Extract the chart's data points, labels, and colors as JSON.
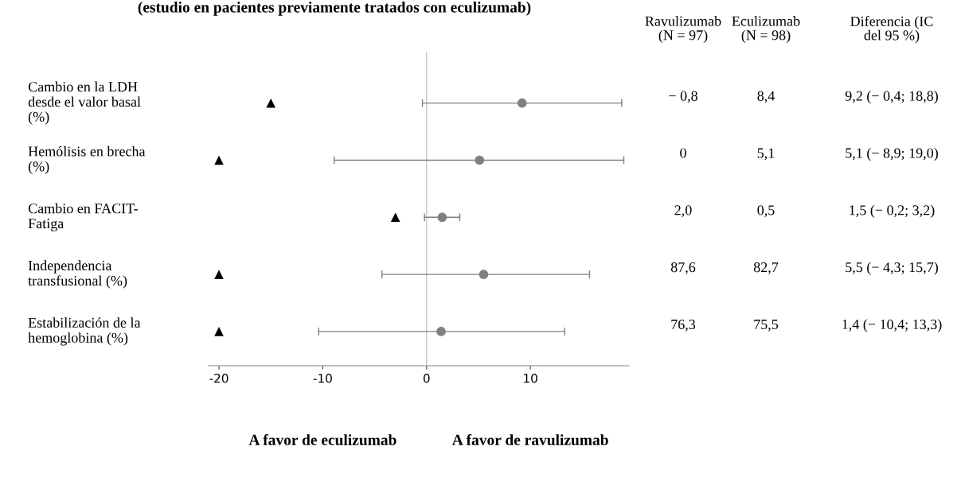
{
  "chart_data": {
    "type": "scatter",
    "orientation": "horizontal",
    "title": "(estudio en pacientes previamente tratados con eculizumab)",
    "categories": [
      "Cambio en la LDH\ndesde el valor basal\n(%)",
      "Hemólisis en brecha\n(%)",
      "Cambio en FACIT-\nFatiga",
      "Independencia\ntransfusional (%)",
      "Estabilización de la\nhemoglobina (%)"
    ],
    "series": [
      {
        "marker": "circle",
        "color": "#808080",
        "values": [
          9.2,
          5.1,
          1.5,
          5.5,
          1.4
        ],
        "errors": [
          [
            -0.4,
            18.8
          ],
          [
            -8.9,
            19.0
          ],
          [
            -0.2,
            3.2
          ],
          [
            -4.3,
            15.7
          ],
          [
            -10.4,
            13.3
          ]
        ],
        "value_labels": [
          "9,2 (− 0,4; 18,8)",
          "5,1 (− 8,9; 19,0)",
          "1,5 (− 0,2; 3,2)",
          "5,5 (− 4,3; 15,7)",
          "1,4 (− 10,4; 13,3)"
        ]
      },
      {
        "marker": "triangle",
        "color": "#000000",
        "values": [
          -15,
          -20,
          -3,
          -20,
          -20
        ]
      }
    ],
    "xlim": [
      -21,
      19.5
    ],
    "xticks": [
      -20,
      -10,
      0,
      10
    ],
    "ref_lines": [
      {
        "axis": "x",
        "value": 0,
        "color": "#c8c8c8"
      }
    ],
    "grid": false,
    "legend": false,
    "annotations": [
      "Ravulizumab\n(N = 97)",
      "Eculizumab\n(N = 98)",
      "Diferencia (IC\ndel 95 %)",
      "− 0,8",
      "8,4",
      "0",
      "5,1",
      "2,0",
      "0,5",
      "87,6",
      "82,7",
      "76,3",
      "75,5",
      "A favor de eculizumab",
      "A favor de ravulizumab"
    ]
  }
}
